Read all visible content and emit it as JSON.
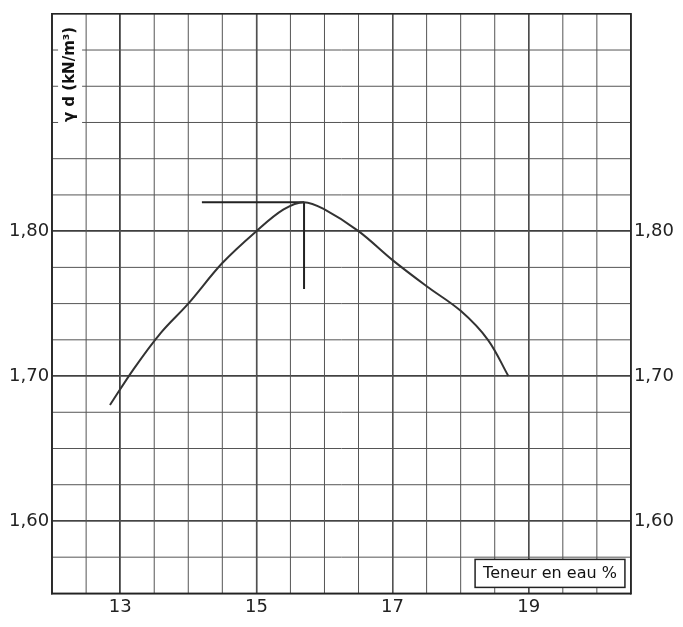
{
  "chart_data": {
    "type": "line",
    "y_label": "γ d (kN/m³)",
    "x_label": "Teneur en eau %",
    "series": [
      {
        "color": "#333333",
        "line_style": "solid",
        "x": [
          12.85,
          13.2,
          13.6,
          14.0,
          14.5,
          15.0,
          15.4,
          15.7,
          16.0,
          16.5,
          17.0,
          17.5,
          18.0,
          18.4,
          18.7
        ],
        "values": [
          1.68,
          1.705,
          1.73,
          1.75,
          1.778,
          1.8,
          1.815,
          1.82,
          1.815,
          1.8,
          1.78,
          1.762,
          1.745,
          1.725,
          1.7
        ]
      },
      {
        "color": "#222222",
        "line_style": "solid",
        "x": [
          14.2,
          15.7
        ],
        "values": [
          1.82,
          1.82
        ]
      },
      {
        "color": "#222222",
        "line_style": "solid",
        "x": [
          15.7,
          15.7
        ],
        "values": [
          1.82,
          1.76
        ]
      }
    ],
    "xlim": [
      12,
      20.5
    ],
    "xticks": [
      13,
      15,
      17,
      19
    ],
    "ylim": [
      1.55,
      1.95
    ],
    "yticks": [
      {
        "value": 1.6,
        "label": "1,60"
      },
      {
        "value": 1.7,
        "label": "1,70"
      },
      {
        "value": 1.8,
        "label": "1,80"
      }
    ],
    "grid": true
  }
}
